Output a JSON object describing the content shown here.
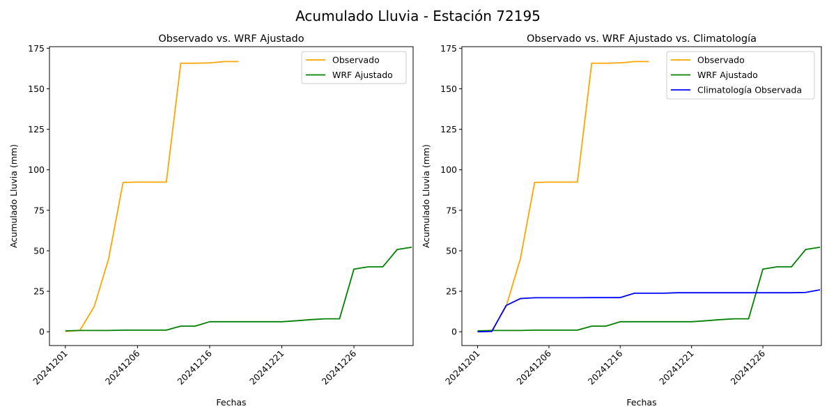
{
  "figure_title": "Acumulado Lluvia - Estación 72195",
  "colors": {
    "observado": "#ffa500",
    "wrf": "#008000",
    "clima": "#0000ff"
  },
  "chart_data": [
    {
      "type": "line",
      "title": "Observado vs. WRF Ajustado",
      "xlabel": "Fechas",
      "ylabel": "Acumulado Lluvia (mm)",
      "x_tick_labels": [
        "20241201",
        "20241206",
        "20241216",
        "20241221",
        "20241226"
      ],
      "y_ticks": [
        0,
        25,
        50,
        75,
        100,
        125,
        150,
        175
      ],
      "xlim": [
        -1.1,
        24.1
      ],
      "ylim": [
        -8.5,
        176
      ],
      "legend_position": "upper right",
      "series": [
        {
          "name": "Observado",
          "color": "#ffa500",
          "x": [
            0,
            1,
            2,
            3,
            4,
            5,
            6,
            7,
            8,
            9,
            10,
            11,
            12,
            13,
            14,
            15,
            16,
            17,
            18,
            19,
            20,
            21,
            22,
            23,
            24
          ],
          "values": [
            0.2,
            0.8,
            15.5,
            45.0,
            92.2,
            92.4,
            92.4,
            92.4,
            165.8,
            165.8,
            166.0,
            166.8,
            166.8,
            null,
            null,
            null,
            null,
            null,
            null,
            null,
            null,
            null,
            null,
            null,
            null
          ]
        },
        {
          "name": "WRF Ajustado",
          "color": "#008000",
          "x": [
            0,
            1,
            2,
            3,
            4,
            5,
            6,
            7,
            8,
            9,
            10,
            11,
            12,
            13,
            14,
            15,
            16,
            17,
            18,
            19,
            20,
            21,
            22,
            23,
            24
          ],
          "values": [
            0.6,
            0.8,
            0.8,
            0.8,
            1.0,
            1.0,
            1.0,
            1.0,
            3.5,
            3.5,
            6.2,
            6.2,
            6.2,
            6.2,
            6.2,
            6.2,
            6.8,
            7.5,
            8.0,
            8.0,
            38.7,
            40.1,
            40.1,
            50.8,
            52.2
          ]
        }
      ]
    },
    {
      "type": "line",
      "title": "Observado vs. WRF Ajustado vs. Climatología",
      "xlabel": "Fechas",
      "ylabel": "Acumulado Lluvia (mm)",
      "x_tick_labels": [
        "20241201",
        "20241206",
        "20241216",
        "20241221",
        "20241226"
      ],
      "y_ticks": [
        0,
        25,
        50,
        75,
        100,
        125,
        150,
        175
      ],
      "xlim": [
        -1.1,
        24.1
      ],
      "ylim": [
        -8.5,
        176
      ],
      "legend_position": "upper right",
      "series": [
        {
          "name": "Observado",
          "color": "#ffa500",
          "x": [
            0,
            1,
            2,
            3,
            4,
            5,
            6,
            7,
            8,
            9,
            10,
            11,
            12,
            13,
            14,
            15,
            16,
            17,
            18,
            19,
            20,
            21,
            22,
            23,
            24
          ],
          "values": [
            0.2,
            0.8,
            15.5,
            45.0,
            92.2,
            92.4,
            92.4,
            92.4,
            165.8,
            165.8,
            166.0,
            166.8,
            166.8,
            null,
            null,
            null,
            null,
            null,
            null,
            null,
            null,
            null,
            null,
            null,
            null
          ]
        },
        {
          "name": "WRF Ajustado",
          "color": "#008000",
          "x": [
            0,
            1,
            2,
            3,
            4,
            5,
            6,
            7,
            8,
            9,
            10,
            11,
            12,
            13,
            14,
            15,
            16,
            17,
            18,
            19,
            20,
            21,
            22,
            23,
            24
          ],
          "values": [
            0.6,
            0.8,
            0.8,
            0.8,
            1.0,
            1.0,
            1.0,
            1.0,
            3.5,
            3.5,
            6.2,
            6.2,
            6.2,
            6.2,
            6.2,
            6.2,
            6.8,
            7.5,
            8.0,
            8.0,
            38.7,
            40.1,
            40.1,
            50.8,
            52.2
          ]
        },
        {
          "name": "Climatología Observada",
          "color": "#0000ff",
          "x": [
            0,
            1,
            2,
            3,
            4,
            5,
            6,
            7,
            8,
            9,
            10,
            11,
            12,
            13,
            14,
            15,
            16,
            17,
            18,
            19,
            20,
            21,
            22,
            23,
            24
          ],
          "values": [
            0.0,
            0.2,
            16.2,
            20.5,
            21.0,
            21.0,
            21.0,
            21.0,
            21.1,
            21.1,
            21.1,
            23.8,
            23.8,
            23.8,
            24.1,
            24.1,
            24.1,
            24.1,
            24.1,
            24.1,
            24.1,
            24.1,
            24.1,
            24.3,
            25.9
          ]
        }
      ]
    }
  ]
}
